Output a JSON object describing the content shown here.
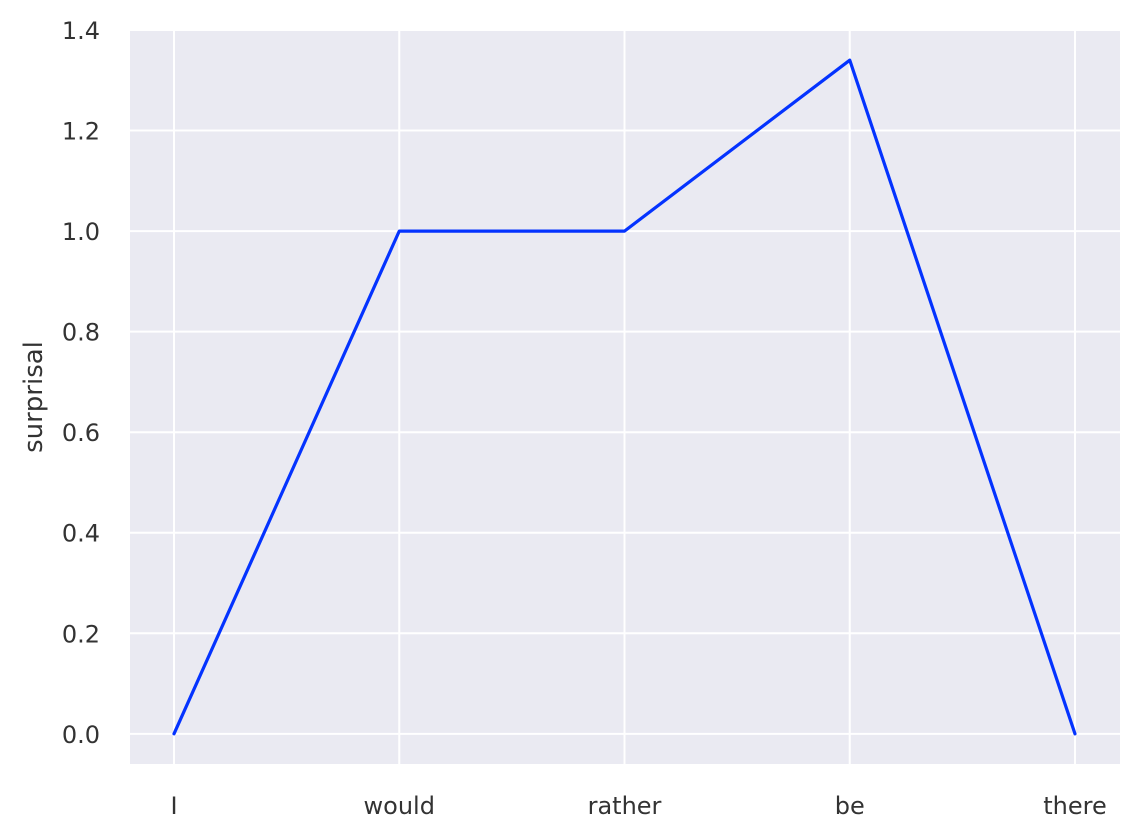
{
  "chart_data": {
    "type": "line",
    "title": "",
    "xlabel": "",
    "ylabel": "surprisal",
    "categories": [
      "I",
      "would",
      "rather",
      "be",
      "there"
    ],
    "series": [
      {
        "values": [
          0.0,
          1.0,
          1.0,
          1.34,
          0.0
        ],
        "color": "#0433ff"
      }
    ],
    "ylim": [
      -0.06,
      1.4
    ],
    "yticks": [
      0.0,
      0.2,
      0.4,
      0.6,
      0.8,
      1.0,
      1.2,
      1.4
    ],
    "ytick_labels": [
      "0.0",
      "0.2",
      "0.4",
      "0.6",
      "0.8",
      "1.0",
      "1.2",
      "1.4"
    ],
    "grid": true,
    "background": "#eaeaf2",
    "grid_color": "#ffffff",
    "legend": "none"
  }
}
